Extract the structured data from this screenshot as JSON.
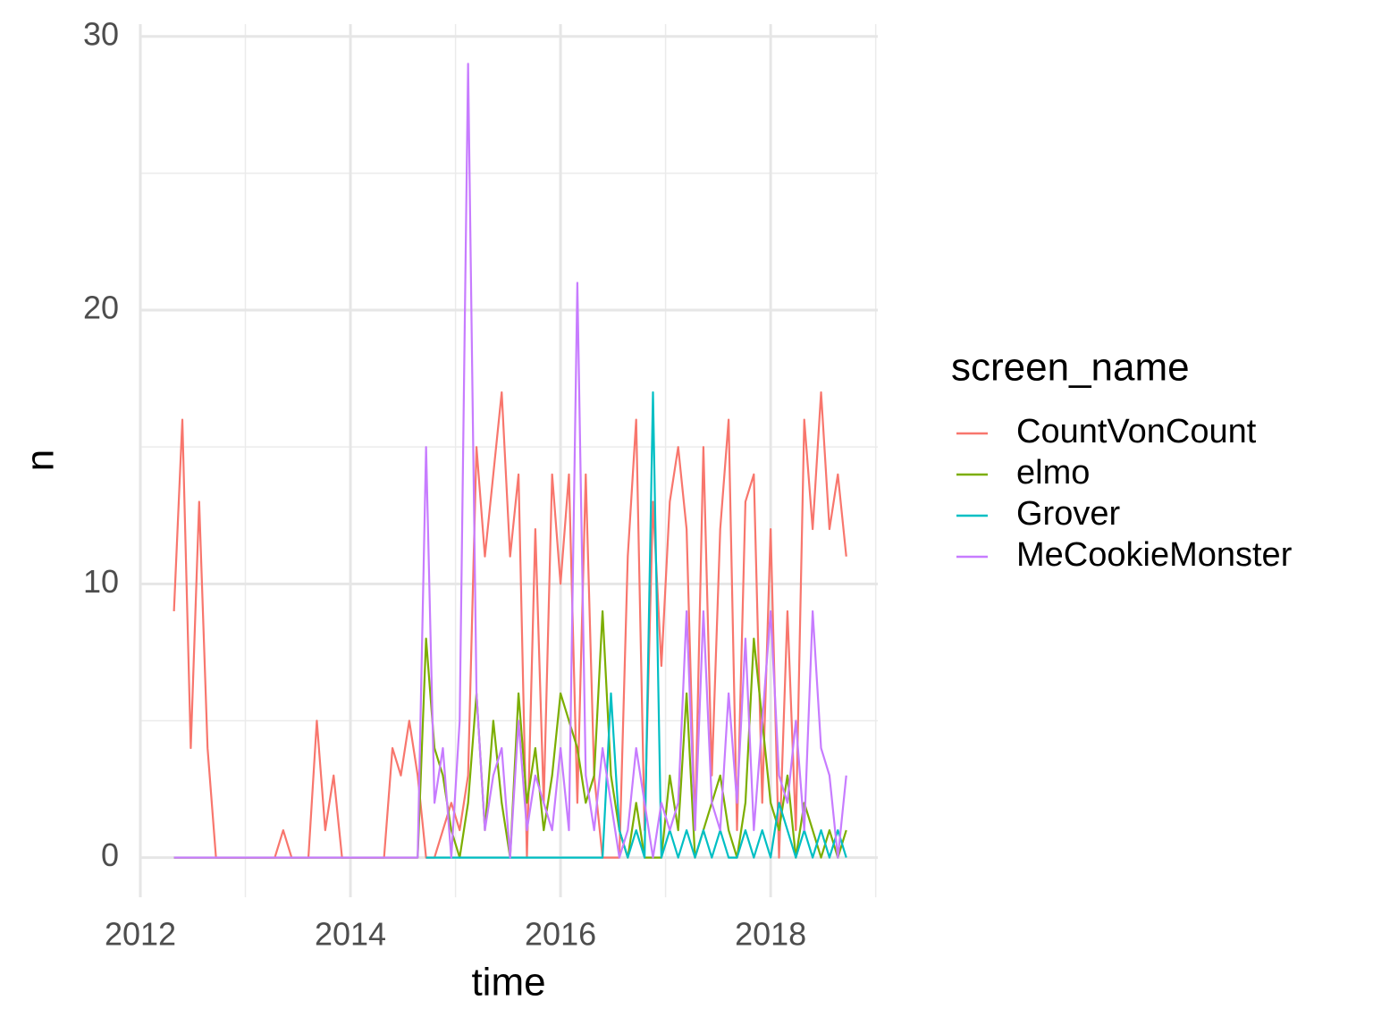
{
  "chart_data": {
    "type": "line",
    "x_label": "time",
    "y_label": "n",
    "legend_title": "screen_name",
    "legend_position": "right",
    "x": [
      2012.32,
      2012.4,
      2012.48,
      2012.56,
      2012.64,
      2012.72,
      2012.8,
      2012.88,
      2012.96,
      2013.04,
      2013.12,
      2013.2,
      2013.28,
      2013.36,
      2013.44,
      2013.52,
      2013.6,
      2013.68,
      2013.76,
      2013.84,
      2013.92,
      2014.0,
      2014.08,
      2014.16,
      2014.24,
      2014.32,
      2014.4,
      2014.48,
      2014.56,
      2014.64,
      2014.72,
      2014.8,
      2014.88,
      2014.96,
      2015.04,
      2015.12,
      2015.2,
      2015.28,
      2015.36,
      2015.44,
      2015.52,
      2015.6,
      2015.68,
      2015.76,
      2015.84,
      2015.92,
      2016.0,
      2016.08,
      2016.16,
      2016.24,
      2016.32,
      2016.4,
      2016.48,
      2016.56,
      2016.64,
      2016.72,
      2016.8,
      2016.88,
      2016.96,
      2017.04,
      2017.12,
      2017.2,
      2017.28,
      2017.36,
      2017.44,
      2017.52,
      2017.6,
      2017.68,
      2017.76,
      2017.84,
      2017.92,
      2018.0,
      2018.08,
      2018.16,
      2018.24,
      2018.32,
      2018.4,
      2018.48,
      2018.56,
      2018.64,
      2018.72
    ],
    "series": [
      {
        "name": "CountVonCount",
        "color": "#F8766D",
        "values": [
          9,
          16,
          4,
          13,
          4,
          0,
          0,
          0,
          0,
          0,
          0,
          0,
          0,
          1,
          0,
          0,
          0,
          5,
          1,
          3,
          0,
          0,
          0,
          0,
          0,
          0,
          4,
          3,
          5,
          3,
          0,
          0,
          1,
          2,
          1,
          3,
          15,
          11,
          14,
          17,
          11,
          14,
          0,
          12,
          2,
          14,
          10,
          14,
          2,
          14,
          3,
          0,
          0,
          0,
          11,
          16,
          1,
          13,
          7,
          13,
          15,
          12,
          1,
          15,
          3,
          12,
          16,
          1,
          13,
          14,
          2,
          12,
          0,
          9,
          1,
          16,
          12,
          17,
          12,
          14,
          11
        ]
      },
      {
        "name": "elmo",
        "color": "#7CAE00",
        "values": [
          0,
          0,
          0,
          0,
          0,
          0,
          0,
          0,
          0,
          0,
          0,
          0,
          0,
          0,
          0,
          0,
          0,
          0,
          0,
          0,
          0,
          0,
          0,
          0,
          0,
          0,
          0,
          0,
          0,
          0,
          8,
          4,
          3,
          1,
          0,
          2,
          6,
          1,
          5,
          2,
          0,
          6,
          2,
          4,
          1,
          3,
          6,
          5,
          4,
          2,
          3,
          9,
          3,
          1,
          0,
          2,
          0,
          0,
          0,
          3,
          1,
          6,
          0,
          1,
          2,
          3,
          1,
          0,
          2,
          8,
          5,
          2,
          1,
          3,
          0,
          2,
          1,
          0,
          1,
          0,
          1
        ]
      },
      {
        "name": "Grover",
        "color": "#00BFC4",
        "values": [
          null,
          null,
          null,
          null,
          null,
          null,
          null,
          null,
          null,
          null,
          null,
          null,
          null,
          null,
          null,
          null,
          null,
          null,
          null,
          null,
          null,
          null,
          null,
          null,
          null,
          null,
          null,
          null,
          null,
          null,
          0,
          0,
          0,
          0,
          0,
          0,
          0,
          0,
          0,
          0,
          0,
          0,
          0,
          0,
          0,
          0,
          0,
          0,
          0,
          0,
          0,
          0,
          6,
          1,
          0,
          1,
          0,
          17,
          0,
          1,
          0,
          1,
          0,
          1,
          0,
          1,
          0,
          0,
          1,
          0,
          1,
          0,
          2,
          1,
          0,
          1,
          0,
          1,
          0,
          1,
          0
        ]
      },
      {
        "name": "MeCookieMonster",
        "color": "#C77CFF",
        "values": [
          0,
          0,
          0,
          0,
          0,
          0,
          0,
          0,
          0,
          0,
          0,
          0,
          0,
          0,
          0,
          0,
          0,
          0,
          0,
          0,
          0,
          0,
          0,
          0,
          0,
          0,
          0,
          0,
          0,
          0,
          15,
          2,
          4,
          0,
          5,
          29,
          6,
          1,
          3,
          4,
          0,
          5,
          1,
          3,
          2,
          1,
          4,
          1,
          21,
          3,
          1,
          4,
          2,
          0,
          1,
          4,
          2,
          0,
          2,
          1,
          2,
          9,
          1,
          9,
          2,
          1,
          6,
          2,
          8,
          1,
          5,
          9,
          3,
          2,
          5,
          1,
          9,
          4,
          3,
          0,
          3
        ]
      }
    ],
    "xlim": [
      2012,
      2019.02
    ],
    "xticks": [
      2012,
      2014,
      2016,
      2018
    ],
    "x_minor_ticks": [
      2013,
      2015,
      2017,
      2019
    ],
    "ylim": [
      -1.45,
      30.45
    ],
    "yticks": [
      0,
      10,
      20,
      30
    ],
    "y_minor_ticks": [
      5,
      15,
      25
    ],
    "grid": true
  }
}
